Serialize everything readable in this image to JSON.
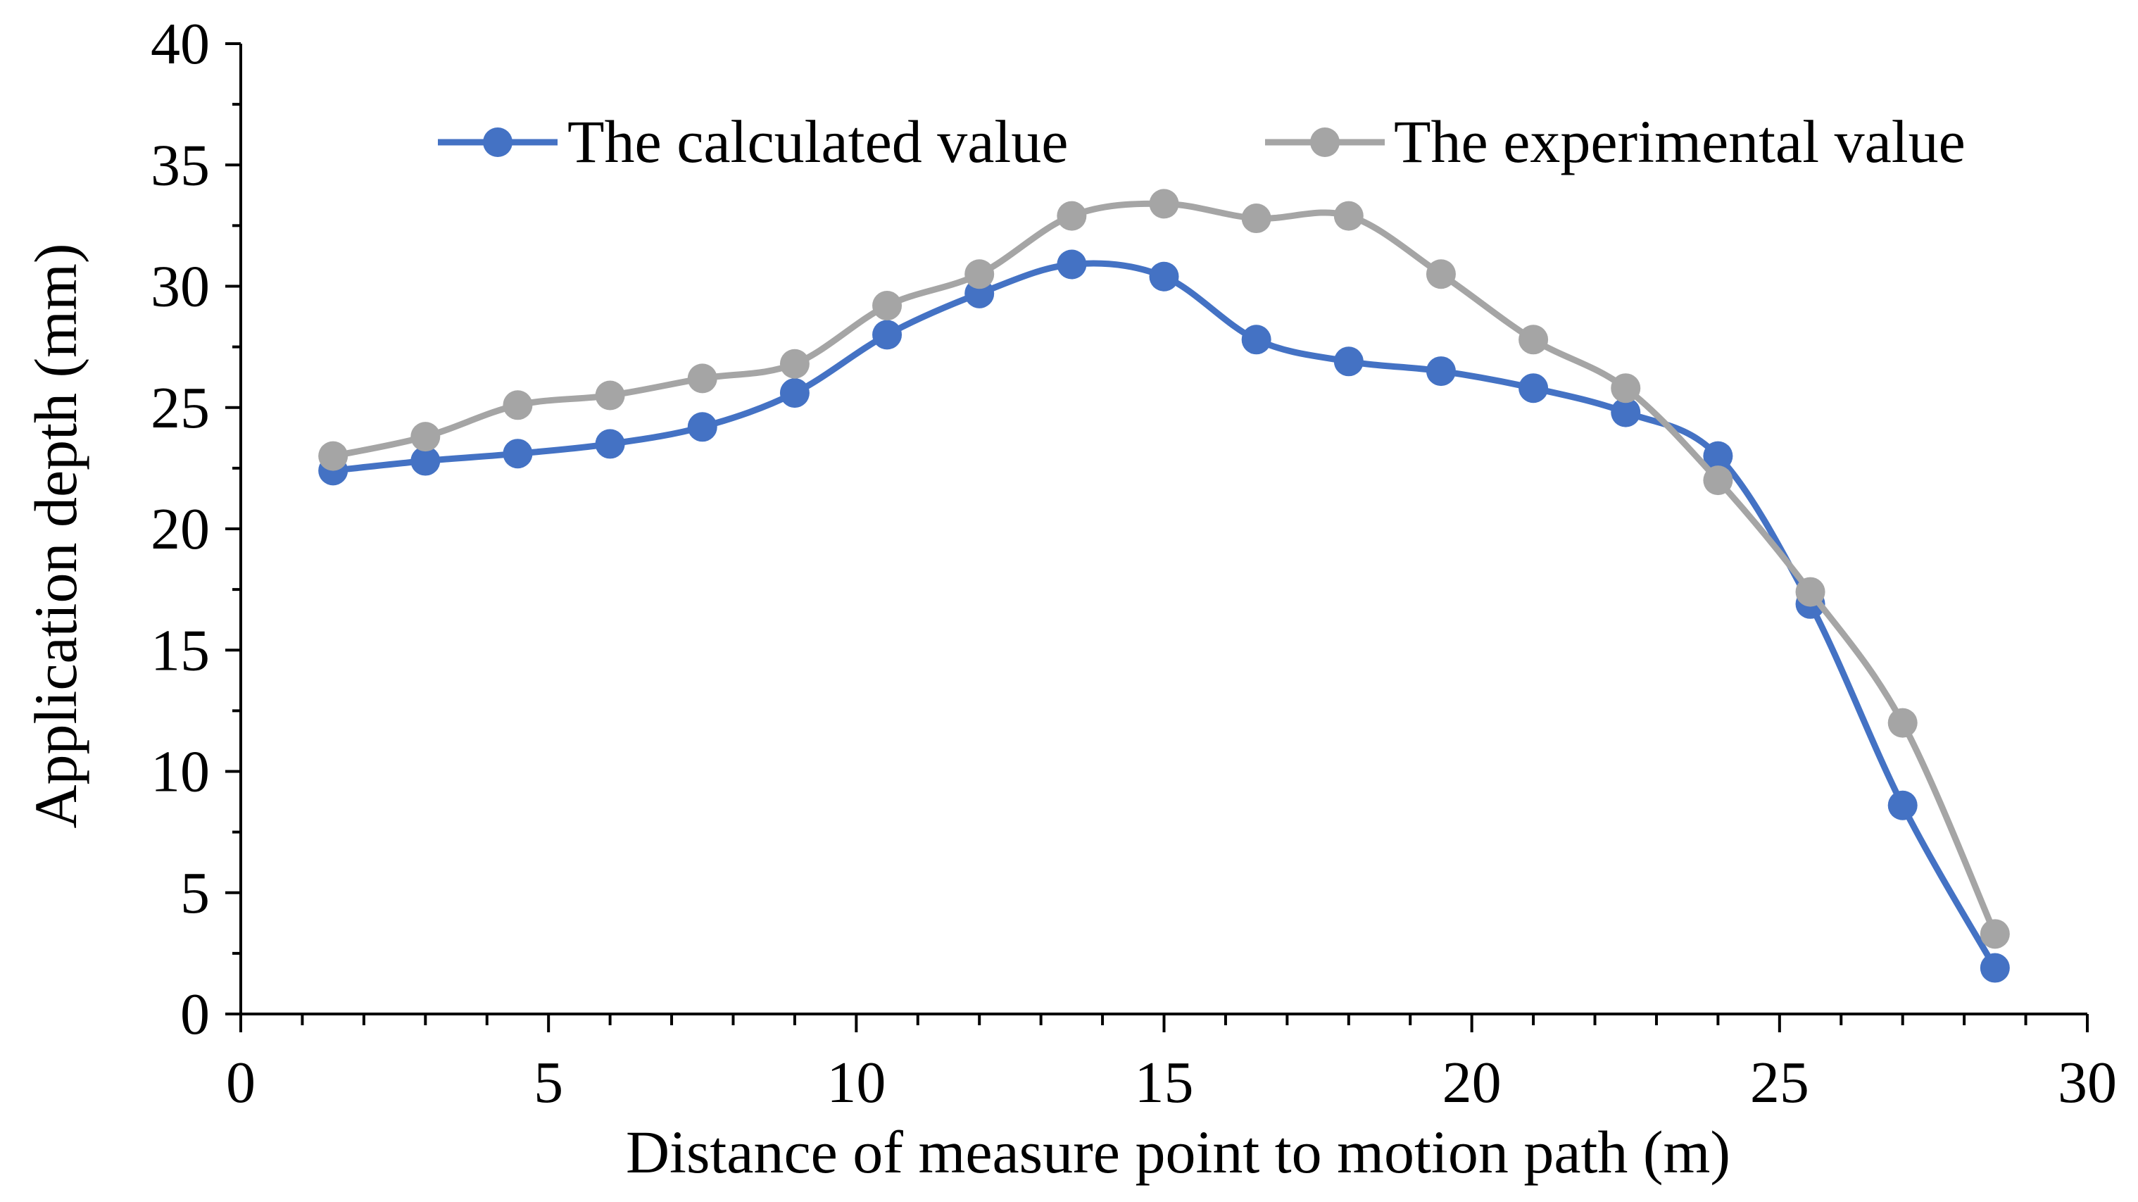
{
  "chart_data": {
    "type": "line",
    "title": "",
    "xlabel": "Distance of measure point to motion path (m)",
    "ylabel": "Application depth (mm)",
    "xlim": [
      0,
      30
    ],
    "ylim": [
      0,
      40
    ],
    "x_ticks": [
      "0",
      "5",
      "10",
      "15",
      "20",
      "25",
      "30"
    ],
    "y_ticks": [
      "0",
      "5",
      "10",
      "15",
      "20",
      "25",
      "30",
      "35",
      "40"
    ],
    "grid": false,
    "legend_position": "top",
    "x": [
      1.5,
      3,
      4.5,
      6,
      7.5,
      9,
      10.5,
      12,
      13.5,
      15,
      16.5,
      18,
      19.5,
      21,
      22.5,
      24,
      25.5,
      27,
      28.5
    ],
    "series": [
      {
        "name": "The calculated value",
        "color": "#4472C4",
        "values": [
          22.4,
          22.8,
          23.1,
          23.5,
          24.2,
          25.6,
          28.0,
          29.7,
          30.9,
          30.4,
          27.8,
          26.9,
          26.5,
          25.8,
          24.8,
          23.0,
          16.9,
          8.6,
          1.9
        ]
      },
      {
        "name": "The experimental value",
        "color": "#A5A5A5",
        "values": [
          23.0,
          23.8,
          25.1,
          25.5,
          26.2,
          26.8,
          29.2,
          30.5,
          32.9,
          33.4,
          32.8,
          32.9,
          30.5,
          27.8,
          25.8,
          22.0,
          17.4,
          12.0,
          3.3
        ]
      }
    ]
  }
}
